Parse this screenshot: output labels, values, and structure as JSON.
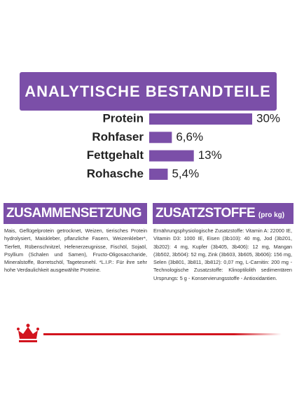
{
  "chart_data": {
    "type": "hbar",
    "title": "ANALYTISCHE BESTANDTEILE",
    "categories": [
      "Protein",
      "Rohfaser",
      "Fettgehalt",
      "Rohasche"
    ],
    "values": [
      30,
      6.6,
      13,
      5.4
    ],
    "value_labels": [
      "30%",
      "6,6%",
      "13%",
      "5,4%"
    ],
    "color": "#7b4fa8"
  },
  "composition": {
    "title": "ZUSAMMENSETZUNG",
    "text": "Mais, Geflügelprotein getrocknet, Weizen, tierisches Protein hydrolysiert, Maiskleber, pflanzliche Fasern, Weizenkleber*, Tierfett, Rübenschnitzel, Hefenerzeugnisse, Fischöl, Sojaöl, Psyllium (Schalen und Samen), Fructo-Oligosaccharide, Mineralstoffe, Borretschöl, Tagetesmehl. *L.I.P.: Für ihre sehr hohe Verdaulichkeit ausgewählte Proteine."
  },
  "additives": {
    "title": "ZUSATZSTOFFE",
    "unit": "(pro kg)",
    "text": "Ernährungsphysiologische Zusatzstoffe: Vitamin A: 22000 IE, Vitamin D3: 1000 IE, Eisen (3b103): 40 mg, Jod (3b201, 3b202): 4 mg, Kupfer (3b405, 3b406): 12 mg, Mangan (3b502, 3b504): 52 mg, Zink (3b603, 3b605, 3b606): 156 mg, Selen (3b801, 3b811, 3b812): 0,07 mg, L-Carnitin: 200 mg - Technologische Zusatzstoffe: Klinoptilolith sedimentären Ursprungs: 5 g - Konservierungsstoffe - Antioxidantien."
  }
}
